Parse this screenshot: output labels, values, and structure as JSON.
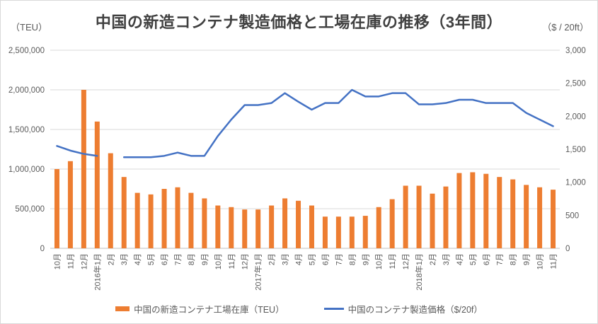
{
  "header": {
    "title": "中国の新造コンテナ製造価格と工場在庫の推移（3年間）",
    "left_unit": "（TEU）",
    "right_unit": "（$ / 20ft）"
  },
  "legend": {
    "inventory_label": "中国の新造コンテナ工場在庫（TEU）",
    "price_label": "中国のコンテナ製造価格（$/20f）"
  },
  "colors": {
    "bar": "#ED7D31",
    "line": "#4472C4",
    "grid": "#D9D9D9",
    "axis_line": "#BFBFBF",
    "tick_text": "#595959",
    "title_text": "#404040"
  },
  "chart_data": {
    "type": "combo",
    "title": "中国の新造コンテナ製造価格と工場在庫の推移（3年間）",
    "grid": true,
    "legend_position": "bottom",
    "categories": [
      "10月",
      "11月",
      "12月",
      "2016年1月",
      "2月",
      "3月",
      "4月",
      "5月",
      "6月",
      "7月",
      "8月",
      "9月",
      "10月",
      "11月",
      "12月",
      "2017年1月",
      "2月",
      "3月",
      "4月",
      "5月",
      "6月",
      "7月",
      "8月",
      "9月",
      "10月",
      "11月",
      "12月",
      "2018年1月",
      "2月",
      "3月",
      "4月",
      "5月",
      "6月",
      "7月",
      "8月",
      "9月",
      "10月",
      "11月"
    ],
    "left_axis": {
      "unit": "（TEU）",
      "min": 0,
      "max": 2500000,
      "step": 500000
    },
    "right_axis": {
      "unit": "（$ / 20ft）",
      "min": 0,
      "max": 3000,
      "step": 500
    },
    "series": [
      {
        "name": "中国の新造コンテナ工場在庫（TEU）",
        "type": "bar",
        "axis": "left",
        "color": "#ED7D31",
        "values": [
          1000000,
          1100000,
          2000000,
          1600000,
          1200000,
          900000,
          700000,
          680000,
          750000,
          770000,
          700000,
          630000,
          540000,
          520000,
          490000,
          490000,
          540000,
          630000,
          600000,
          540000,
          400000,
          400000,
          400000,
          410000,
          520000,
          620000,
          790000,
          790000,
          690000,
          780000,
          950000,
          960000,
          940000,
          900000,
          870000,
          800000,
          770000,
          740000
        ]
      },
      {
        "name": "中国のコンテナ製造価格（$/20f）",
        "type": "line",
        "axis": "right",
        "color": "#4472C4",
        "values": [
          1550,
          1480,
          1430,
          1400,
          null,
          1380,
          1380,
          1380,
          1400,
          1450,
          1400,
          1400,
          1700,
          1950,
          2170,
          2170,
          2200,
          2350,
          2220,
          2100,
          2200,
          2200,
          2400,
          2300,
          2300,
          2350,
          2350,
          2180,
          2180,
          2200,
          2250,
          2250,
          2200,
          2200,
          2200,
          2050,
          1950,
          1850
        ]
      }
    ]
  }
}
